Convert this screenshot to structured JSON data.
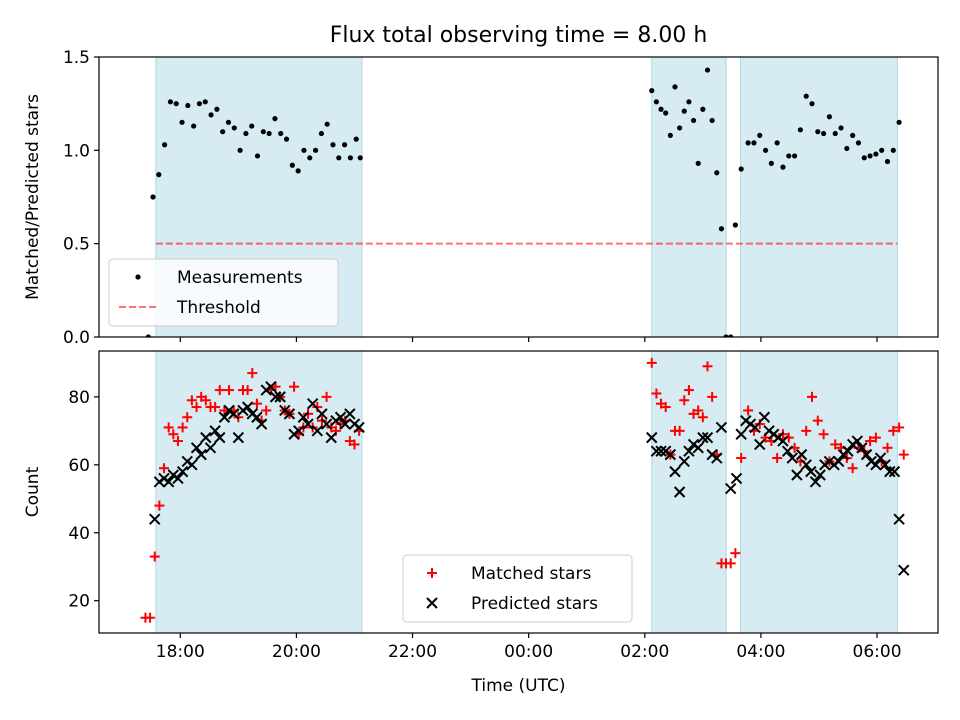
{
  "figure_title": "Flux total observing time = 8.00 h",
  "colors": {
    "shade": "#add8e6",
    "measurement": "#000000",
    "threshold": "#ff0000",
    "matched": "#ff0000",
    "predicted": "#000000"
  },
  "chart_data": [
    {
      "type": "scatter",
      "panel": "top",
      "ylabel": "Matched/Predicted stars",
      "xlabel": "",
      "ylim": [
        0,
        1.5
      ],
      "yticks": [
        0.0,
        0.5,
        1.0,
        1.5
      ],
      "ytick_labels": [
        "0.0",
        "0.5",
        "1.0",
        "1.5"
      ],
      "xlim_hours": [
        16.6,
        31.05
      ],
      "xticks_hours": [
        18,
        20,
        22,
        24,
        26,
        28,
        30
      ],
      "xtick_labels": [
        "18:00",
        "20:00",
        "22:00",
        "00:00",
        "02:00",
        "04:00",
        "06:00"
      ],
      "shaded_intervals_hours": [
        [
          17.58,
          21.13
        ],
        [
          26.12,
          27.4
        ],
        [
          27.65,
          30.35
        ]
      ],
      "legend_position": "lower-left",
      "legend": {
        "measurements": "Measurements",
        "threshold": "Threshold"
      },
      "threshold": {
        "name": "Threshold",
        "y": 0.5,
        "x_range": [
          17.58,
          30.35
        ],
        "style": "dashed"
      },
      "series": [
        {
          "name": "Measurements",
          "marker": "dot",
          "x": [
            17.45,
            17.53,
            17.63,
            17.73,
            17.83,
            17.93,
            18.03,
            18.13,
            18.23,
            18.33,
            18.43,
            18.53,
            18.63,
            18.73,
            18.83,
            18.93,
            19.03,
            19.13,
            19.23,
            19.33,
            19.43,
            19.53,
            19.63,
            19.73,
            19.83,
            19.93,
            20.03,
            20.13,
            20.23,
            20.33,
            20.43,
            20.53,
            20.63,
            20.73,
            20.83,
            20.93,
            21.03,
            21.1,
            26.12,
            26.2,
            26.28,
            26.36,
            26.44,
            26.52,
            26.6,
            26.68,
            26.76,
            26.84,
            26.92,
            27.0,
            27.08,
            27.16,
            27.24,
            27.32,
            27.4,
            27.48,
            27.56,
            27.66,
            27.78,
            27.88,
            27.98,
            28.08,
            28.18,
            28.28,
            28.38,
            28.48,
            28.58,
            28.68,
            28.78,
            28.88,
            28.98,
            29.08,
            29.18,
            29.28,
            29.38,
            29.48,
            29.58,
            29.68,
            29.78,
            29.88,
            29.98,
            30.08,
            30.18,
            30.28,
            30.38
          ],
          "y": [
            0.0,
            0.75,
            0.87,
            1.03,
            1.26,
            1.25,
            1.15,
            1.24,
            1.13,
            1.25,
            1.26,
            1.19,
            1.22,
            1.1,
            1.15,
            1.12,
            1.0,
            1.09,
            1.13,
            0.97,
            1.1,
            1.09,
            1.17,
            1.09,
            1.06,
            0.92,
            0.89,
            1.0,
            0.96,
            1.0,
            1.09,
            1.14,
            1.03,
            0.96,
            1.03,
            0.96,
            1.06,
            0.96,
            1.32,
            1.26,
            1.22,
            1.2,
            1.08,
            1.34,
            1.12,
            1.21,
            1.26,
            1.16,
            0.93,
            1.22,
            1.43,
            1.16,
            0.88,
            0.58,
            0.0,
            0.0,
            0.6,
            0.9,
            1.04,
            1.04,
            1.08,
            1.0,
            0.93,
            1.04,
            0.91,
            0.97,
            0.97,
            1.11,
            1.29,
            1.25,
            1.1,
            1.09,
            1.18,
            1.09,
            1.12,
            1.01,
            1.08,
            1.04,
            0.96,
            0.97,
            0.98,
            1.0,
            0.94,
            1.0,
            1.15
          ]
        }
      ]
    },
    {
      "type": "scatter",
      "panel": "bottom",
      "ylabel": "Count",
      "xlabel": "Time (UTC)",
      "ylim": [
        10.5,
        93.5
      ],
      "yticks": [
        20,
        40,
        60,
        80
      ],
      "ytick_labels": [
        "20",
        "40",
        "60",
        "80"
      ],
      "xlim_hours": [
        16.6,
        31.05
      ],
      "xticks_hours": [
        18,
        20,
        22,
        24,
        26,
        28,
        30
      ],
      "xtick_labels": [
        "18:00",
        "20:00",
        "22:00",
        "00:00",
        "02:00",
        "04:00",
        "06:00"
      ],
      "shaded_intervals_hours": [
        [
          17.58,
          21.13
        ],
        [
          26.12,
          27.4
        ],
        [
          27.65,
          30.35
        ]
      ],
      "legend_position": "lower-center",
      "series": [
        {
          "name": "Matched stars",
          "marker": "plus",
          "x": [
            17.4,
            17.48,
            17.56,
            17.64,
            17.72,
            17.8,
            17.88,
            17.96,
            18.04,
            18.12,
            18.2,
            18.28,
            18.36,
            18.44,
            18.52,
            18.6,
            18.68,
            18.76,
            18.84,
            18.92,
            19.0,
            19.08,
            19.16,
            19.24,
            19.32,
            19.4,
            19.48,
            19.56,
            19.64,
            19.72,
            19.8,
            19.88,
            19.96,
            20.04,
            20.12,
            20.2,
            20.28,
            20.36,
            20.44,
            20.52,
            20.6,
            20.68,
            20.76,
            20.84,
            20.92,
            21.0,
            21.08,
            26.12,
            26.2,
            26.28,
            26.36,
            26.44,
            26.52,
            26.6,
            26.68,
            26.76,
            26.84,
            26.92,
            27.0,
            27.08,
            27.16,
            27.24,
            27.32,
            27.4,
            27.48,
            27.56,
            27.66,
            27.78,
            27.88,
            27.98,
            28.08,
            28.18,
            28.28,
            28.38,
            28.48,
            28.58,
            28.68,
            28.78,
            28.88,
            28.98,
            29.08,
            29.18,
            29.28,
            29.38,
            29.48,
            29.58,
            29.68,
            29.78,
            29.88,
            29.98,
            30.08,
            30.18,
            30.28,
            30.38,
            30.46
          ],
          "y": [
            15,
            15,
            33,
            48,
            59,
            71,
            69,
            67,
            71,
            74,
            79,
            77,
            80,
            79,
            77,
            77,
            82,
            76,
            82,
            76,
            74,
            82,
            82,
            87,
            78,
            73,
            76,
            82,
            83,
            80,
            76,
            75,
            83,
            69,
            71,
            75,
            71,
            77,
            73,
            80,
            71,
            70,
            72,
            73,
            67,
            66,
            70,
            90,
            81,
            78,
            77,
            63,
            70,
            70,
            79,
            82,
            75,
            76,
            74,
            89,
            80,
            63,
            31,
            31,
            31,
            34,
            62,
            76,
            70,
            72,
            68,
            67,
            62,
            69,
            68,
            65,
            61,
            70,
            80,
            73,
            69,
            61,
            66,
            65,
            62,
            59,
            65,
            64,
            67,
            68,
            61,
            65,
            70,
            71,
            63
          ]
        },
        {
          "name": "Predicted stars",
          "marker": "cross",
          "x": [
            17.56,
            17.64,
            17.72,
            17.8,
            17.88,
            17.96,
            18.04,
            18.12,
            18.2,
            18.28,
            18.36,
            18.44,
            18.52,
            18.6,
            18.68,
            18.76,
            18.84,
            18.92,
            19.0,
            19.08,
            19.16,
            19.24,
            19.32,
            19.4,
            19.48,
            19.56,
            19.64,
            19.72,
            19.8,
            19.88,
            19.96,
            20.04,
            20.12,
            20.2,
            20.28,
            20.36,
            20.44,
            20.52,
            20.6,
            20.68,
            20.76,
            20.84,
            20.92,
            21.0,
            21.08,
            26.12,
            26.2,
            26.28,
            26.36,
            26.44,
            26.52,
            26.6,
            26.68,
            26.76,
            26.84,
            26.92,
            27.0,
            27.08,
            27.16,
            27.24,
            27.32,
            27.48,
            27.58,
            27.66,
            27.74,
            27.82,
            27.9,
            27.98,
            28.06,
            28.14,
            28.22,
            28.3,
            28.38,
            28.46,
            28.54,
            28.62,
            28.7,
            28.78,
            28.86,
            28.94,
            29.02,
            29.1,
            29.18,
            29.26,
            29.34,
            29.42,
            29.5,
            29.58,
            29.66,
            29.74,
            29.82,
            29.9,
            29.98,
            30.06,
            30.14,
            30.22,
            30.3,
            30.38,
            30.46
          ],
          "y": [
            44,
            55,
            56,
            55,
            57,
            56,
            58,
            61,
            60,
            65,
            63,
            68,
            65,
            70,
            68,
            74,
            76,
            75,
            68,
            76,
            77,
            75,
            74,
            72,
            82,
            83,
            80,
            80,
            76,
            75,
            69,
            70,
            74,
            72,
            78,
            70,
            75,
            72,
            68,
            73,
            74,
            72,
            75,
            72,
            71,
            68,
            64,
            64,
            64,
            63,
            58,
            52,
            61,
            64,
            66,
            65,
            68,
            68,
            63,
            62,
            71,
            53,
            56,
            69,
            73,
            72,
            71,
            66,
            74,
            70,
            69,
            68,
            67,
            64,
            62,
            57,
            63,
            60,
            58,
            55,
            57,
            60,
            61,
            60,
            61,
            63,
            64,
            66,
            67,
            65,
            63,
            61,
            60,
            62,
            60,
            58,
            58,
            44,
            29
          ]
        }
      ]
    }
  ]
}
